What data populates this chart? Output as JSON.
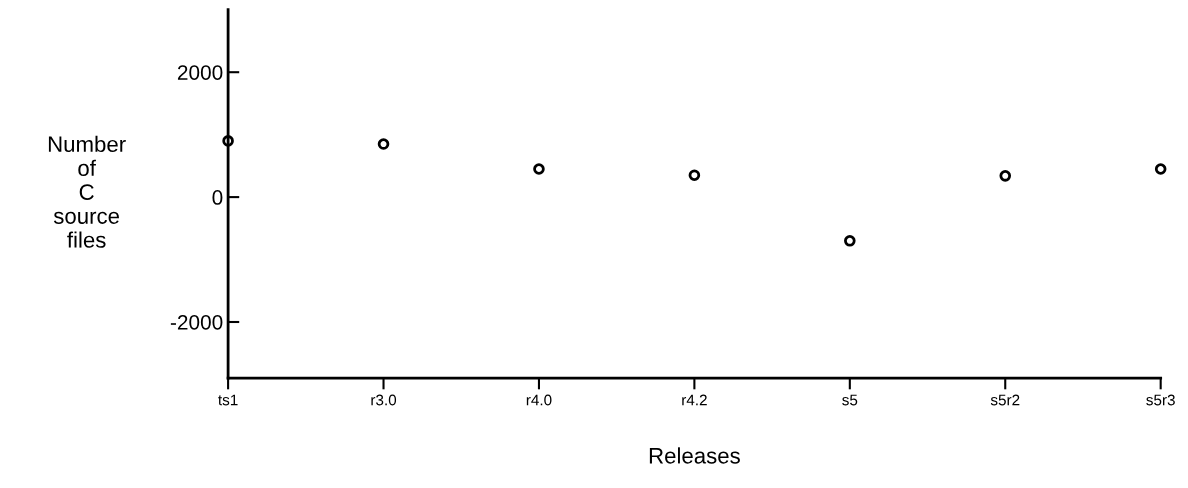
{
  "chart_data": {
    "type": "scatter",
    "categories": [
      "ts1",
      "r3.0",
      "r4.0",
      "r4.2",
      "s5",
      "s5r2",
      "s5r3"
    ],
    "series": [
      {
        "color": "#000000",
        "values": [
          900,
          850,
          450,
          350,
          -700,
          340,
          450
        ]
      }
    ],
    "ylabel": "Number\nof\nC\nsource\nfiles",
    "xlabel": "Releases",
    "ylim": [
      -2900,
      3000
    ],
    "yticks": [
      -2000,
      0,
      2000
    ],
    "marker": "circle",
    "grid": false,
    "legend": false
  }
}
